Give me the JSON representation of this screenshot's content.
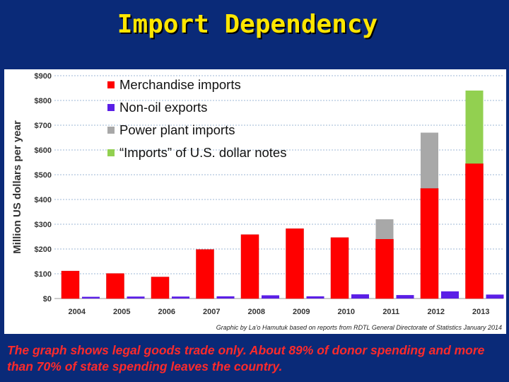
{
  "slide": {
    "title": "Import Dependency",
    "caption": "The graph shows legal goods trade only.  About 89% of donor spending and more than 70% of state spending leaves the country."
  },
  "colors": {
    "background": "#0a2a78",
    "title": "#ffe600",
    "caption": "#ff2a2a",
    "merchandise": "#ff0000",
    "nonoil": "#5b1fe6",
    "power": "#a8a8a8",
    "dollars": "#92d050"
  },
  "chart_data": {
    "type": "bar",
    "categories": [
      "2004",
      "2005",
      "2006",
      "2007",
      "2008",
      "2009",
      "2010",
      "2011",
      "2012",
      "2013"
    ],
    "series": [
      {
        "name": "Merchandise imports",
        "values": [
          111,
          101,
          87,
          198,
          258,
          282,
          246,
          240,
          445,
          545
        ],
        "color": "#ff0000",
        "stack": "imports"
      },
      {
        "name": "Power plant imports",
        "values": [
          0,
          0,
          0,
          0,
          0,
          0,
          0,
          80,
          225,
          0
        ],
        "color": "#a8a8a8",
        "stack": "imports"
      },
      {
        "name": "“Imports” of U.S. dollar notes",
        "values": [
          0,
          0,
          0,
          0,
          0,
          0,
          0,
          0,
          0,
          295
        ],
        "color": "#92d050",
        "stack": "imports"
      },
      {
        "name": "Non-oil exports",
        "values": [
          7,
          8,
          8,
          9,
          13,
          9,
          17,
          14,
          29,
          16
        ],
        "color": "#5b1fe6",
        "stack": "exports"
      }
    ],
    "legend_order": [
      "Merchandise imports",
      "Non-oil exports",
      "Power plant imports",
      "“Imports” of U.S. dollar notes"
    ],
    "ylabel": "Million US dollars per year",
    "yticks": [
      "$0",
      "$100",
      "$200",
      "$300",
      "$400",
      "$500",
      "$600",
      "$700",
      "$800",
      "$900"
    ],
    "ylim": [
      0,
      900
    ],
    "grid": true,
    "legend_position": "top-left",
    "source_note": "Graphic by La'o Hamutuk based on reports from RDTL General Directorate of Statistics   January 2014"
  }
}
